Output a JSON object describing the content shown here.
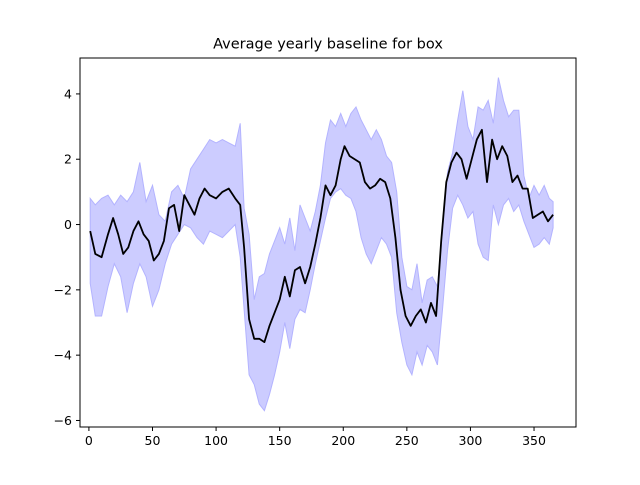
{
  "chart_data": {
    "type": "line",
    "title": "Average yearly baseline for box",
    "xlabel": "",
    "ylabel": "",
    "xlim": [
      -7,
      383
    ],
    "ylim": [
      -6.2,
      5.1
    ],
    "xticks": [
      0,
      50,
      100,
      150,
      200,
      250,
      300,
      350
    ],
    "yticks": [
      -6,
      -4,
      -2,
      0,
      2,
      4
    ],
    "grid": false,
    "legend": "none",
    "colors": {
      "line": "#000000",
      "band_fill": "#ccccff",
      "band_edge": "#b3b3ff"
    },
    "series": [
      {
        "kind": "mean",
        "x": [
          1,
          5,
          10,
          15,
          19,
          23,
          27,
          31,
          35,
          39,
          43,
          47,
          51,
          55,
          59,
          63,
          67,
          71,
          75,
          79,
          83,
          87,
          91,
          95,
          100,
          105,
          110,
          115,
          119,
          122,
          126,
          130,
          134,
          138,
          142,
          146,
          150,
          154,
          158,
          162,
          166,
          170,
          174,
          178,
          182,
          186,
          190,
          194,
          198,
          201,
          205,
          209,
          213,
          217,
          221,
          225,
          229,
          233,
          237,
          241,
          245,
          249,
          253,
          257,
          261,
          265,
          269,
          273,
          277,
          281,
          285,
          289,
          293,
          297,
          301,
          305,
          309,
          313,
          317,
          321,
          325,
          329,
          333,
          337,
          341,
          345,
          349,
          353,
          357,
          361,
          365
        ],
        "y": [
          -0.2,
          -0.9,
          -1.0,
          -0.3,
          0.2,
          -0.3,
          -0.9,
          -0.7,
          -0.2,
          0.1,
          -0.3,
          -0.5,
          -1.1,
          -0.9,
          -0.5,
          0.5,
          0.6,
          -0.2,
          0.9,
          0.6,
          0.3,
          0.8,
          1.1,
          0.9,
          0.8,
          1.0,
          1.1,
          0.8,
          0.6,
          -0.7,
          -2.9,
          -3.5,
          -3.5,
          -3.6,
          -3.1,
          -2.7,
          -2.3,
          -1.6,
          -2.2,
          -1.4,
          -1.3,
          -1.8,
          -1.3,
          -0.6,
          0.2,
          1.2,
          0.9,
          1.2,
          2.0,
          2.4,
          2.1,
          2.0,
          1.9,
          1.3,
          1.1,
          1.2,
          1.4,
          1.3,
          0.8,
          -0.4,
          -2.0,
          -2.8,
          -3.1,
          -2.8,
          -2.6,
          -3.0,
          -2.4,
          -2.8,
          -0.5,
          1.3,
          1.9,
          2.2,
          2.0,
          1.4,
          2.0,
          2.6,
          2.9,
          1.3,
          2.6,
          2.0,
          2.4,
          2.1,
          1.3,
          1.5,
          1.1,
          1.1,
          0.2,
          0.3,
          0.4,
          0.1,
          0.3
        ]
      },
      {
        "kind": "band-upper",
        "x": [
          1,
          5,
          10,
          15,
          20,
          25,
          30,
          35,
          40,
          45,
          50,
          55,
          60,
          65,
          70,
          75,
          80,
          85,
          90,
          95,
          100,
          105,
          110,
          115,
          119,
          122,
          126,
          130,
          134,
          138,
          142,
          146,
          150,
          154,
          158,
          162,
          166,
          170,
          174,
          178,
          182,
          186,
          190,
          194,
          198,
          202,
          206,
          210,
          214,
          218,
          222,
          226,
          230,
          234,
          238,
          242,
          246,
          250,
          254,
          258,
          262,
          266,
          270,
          274,
          278,
          282,
          286,
          290,
          294,
          298,
          302,
          306,
          310,
          314,
          318,
          322,
          326,
          330,
          334,
          338,
          342,
          346,
          350,
          354,
          358,
          362,
          365
        ],
        "y": [
          0.8,
          0.6,
          0.8,
          0.9,
          0.6,
          0.9,
          0.7,
          1.0,
          1.9,
          0.7,
          1.2,
          0.3,
          0.1,
          1.0,
          1.2,
          0.8,
          1.7,
          2.0,
          2.3,
          2.6,
          2.5,
          2.6,
          2.5,
          2.4,
          3.1,
          0.5,
          -0.3,
          -2.3,
          -1.6,
          -1.5,
          -0.9,
          -0.5,
          -0.1,
          -0.6,
          0.2,
          -0.8,
          0.6,
          0.2,
          -0.2,
          0.4,
          1.2,
          2.5,
          3.2,
          3.0,
          3.4,
          3.0,
          3.4,
          3.6,
          3.2,
          2.9,
          2.6,
          2.9,
          2.6,
          2.1,
          1.9,
          1.0,
          -1.0,
          -1.9,
          -2.0,
          -1.2,
          -2.4,
          -1.7,
          -1.6,
          -1.9,
          -0.2,
          1.6,
          2.2,
          3.2,
          4.1,
          3.0,
          2.6,
          3.6,
          3.5,
          3.8,
          3.1,
          4.5,
          3.8,
          3.3,
          3.5,
          3.5,
          1.5,
          0.8,
          1.2,
          0.9,
          1.2,
          0.8,
          0.7
        ]
      },
      {
        "kind": "band-lower",
        "x": [
          1,
          5,
          10,
          15,
          20,
          25,
          30,
          35,
          40,
          45,
          50,
          55,
          60,
          65,
          70,
          75,
          80,
          85,
          90,
          95,
          100,
          105,
          110,
          115,
          119,
          122,
          126,
          130,
          134,
          138,
          142,
          146,
          150,
          154,
          158,
          162,
          166,
          170,
          174,
          178,
          182,
          186,
          190,
          194,
          198,
          202,
          206,
          210,
          214,
          218,
          222,
          226,
          230,
          234,
          238,
          242,
          246,
          250,
          254,
          258,
          262,
          266,
          270,
          274,
          278,
          282,
          286,
          290,
          294,
          298,
          302,
          306,
          310,
          314,
          318,
          322,
          326,
          330,
          334,
          338,
          342,
          346,
          350,
          354,
          358,
          362,
          365
        ],
        "y": [
          -1.8,
          -2.8,
          -2.8,
          -1.9,
          -1.2,
          -1.6,
          -2.7,
          -1.8,
          -1.2,
          -1.6,
          -2.5,
          -2.0,
          -1.2,
          -0.6,
          -0.3,
          0.0,
          -0.1,
          -0.4,
          -0.6,
          -0.2,
          -0.3,
          -0.4,
          -0.2,
          0.0,
          -1.0,
          -2.6,
          -4.6,
          -4.9,
          -5.5,
          -5.7,
          -5.2,
          -4.6,
          -3.9,
          -3.0,
          -3.8,
          -2.9,
          -2.6,
          -2.7,
          -2.0,
          -1.2,
          -0.5,
          0.2,
          0.8,
          1.0,
          1.1,
          0.9,
          0.8,
          0.4,
          -0.4,
          -0.9,
          -1.2,
          -0.8,
          -0.4,
          -0.6,
          -1.0,
          -2.7,
          -3.6,
          -4.3,
          -4.6,
          -3.9,
          -4.3,
          -3.7,
          -3.9,
          -4.3,
          -2.6,
          -0.8,
          0.5,
          0.9,
          0.6,
          0.2,
          0.4,
          -0.6,
          -1.0,
          -1.1,
          0.6,
          0.0,
          0.6,
          0.8,
          0.4,
          0.6,
          0.1,
          -0.3,
          -0.7,
          -0.6,
          -0.4,
          -0.6,
          -0.1
        ]
      }
    ]
  }
}
